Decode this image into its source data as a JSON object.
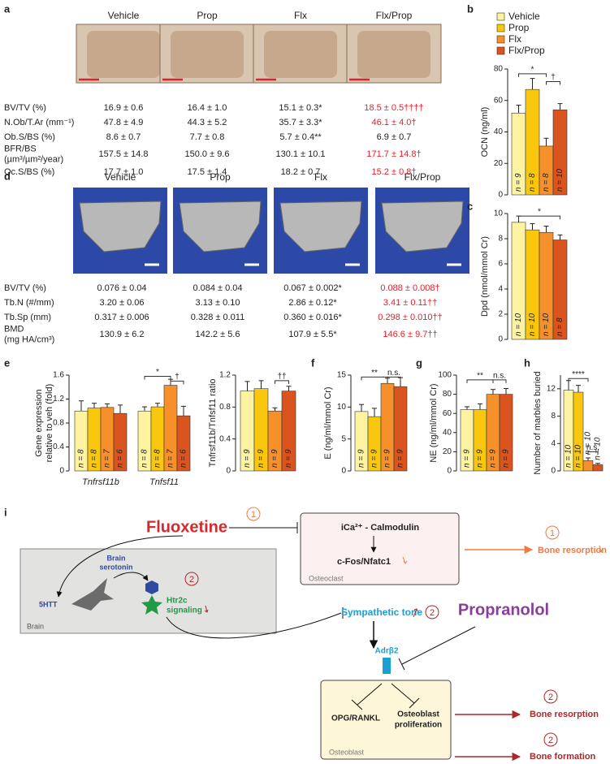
{
  "panel_labels": [
    "a",
    "b",
    "c",
    "d",
    "e",
    "f",
    "g",
    "h",
    "i"
  ],
  "histomorphometry": {
    "groups": [
      "Vehicle",
      "Prop",
      "Flx",
      "Flx/Prop"
    ],
    "highlight_color": "#e8202a",
    "rows": [
      {
        "label": [
          "BV/TV (%)"
        ],
        "cells": [
          "16.9 ± 0.6",
          "16.4 ± 1.0",
          "15.1 ± 0.3*",
          "18.5 ± 0.5††††"
        ],
        "highlight": true
      },
      {
        "label": [
          "N.Ob/T.Ar (mm⁻¹)"
        ],
        "cells": [
          "47.8 ± 4.9",
          "44.3 ± 5.2",
          "35.7 ± 3.3*",
          "46.1 ± 4.0†"
        ],
        "highlight": true
      },
      {
        "label": [
          "Ob.S/BS (%)"
        ],
        "cells": [
          "8.6 ± 0.7",
          "7.7 ± 0.8",
          "5.7 ± 0.4**",
          "6.9 ± 0.7"
        ],
        "highlight": false
      },
      {
        "label": [
          "BFR/BS",
          "(µm³/µm²/year)"
        ],
        "cells": [
          "157.5 ± 14.8",
          "150.0 ± 9.6",
          "130.1 ± 10.1",
          "171.7 ± 14.8†"
        ],
        "highlight": true
      },
      {
        "label": [
          "Oc.S/BS (%)"
        ],
        "cells": [
          "17.7 ± 1.0",
          "17.5 ± 1.4",
          "18.2 ± 0.7",
          "15.2 ± 0.8†"
        ],
        "highlight": true
      }
    ]
  },
  "micro_ct": {
    "groups": [
      "Vehicle",
      "Prop",
      "Flx",
      "Flx/Prop"
    ],
    "highlight_color": "#e8202a",
    "rows": [
      {
        "label": [
          "BV/TV (%)"
        ],
        "cells": [
          "0.076 ± 0.04",
          "0.084 ± 0.04",
          "0.067 ± 0.002*",
          "0.088 ± 0.008†"
        ],
        "highlight": true
      },
      {
        "label": [
          "Tb.N (#/mm)"
        ],
        "cells": [
          "3.20 ± 0.06",
          "3.13 ± 0.10",
          "2.86 ± 0.12*",
          "3.41 ± 0.11††"
        ],
        "highlight": true
      },
      {
        "label": [
          "Tb.Sp (mm)"
        ],
        "cells": [
          "0.317 ± 0.006",
          "0.328 ± 0.011",
          "0.360 ± 0.016*",
          "0.298 ± 0.010††"
        ],
        "highlight": true
      },
      {
        "label": [
          "BMD",
          "(mg HA/cm³)"
        ],
        "cells": [
          "130.9 ± 6.2",
          "142.2 ± 5.6",
          "107.9 ± 5.5*",
          "146.6 ± 9.7††"
        ],
        "highlight": true
      }
    ]
  },
  "chart_data": [
    {
      "type": "bar",
      "ylabel": [
        "OCN (ng/ml)"
      ],
      "ylim": [
        0,
        80
      ],
      "yticks": [
        0,
        20,
        40,
        60,
        80
      ],
      "legend": true,
      "series": [
        {
          "name": "Vehicle",
          "color": "#fdf3a0",
          "values": [
            52
          ],
          "errors": [
            5
          ],
          "n_labels": [
            "n = 9"
          ]
        },
        {
          "name": "Prop",
          "color": "#f9c80e",
          "values": [
            67
          ],
          "errors": [
            7
          ],
          "n_labels": [
            "n = 8"
          ]
        },
        {
          "name": "Flx",
          "color": "#f5902a",
          "values": [
            31
          ],
          "errors": [
            5
          ],
          "n_labels": [
            "n = 8"
          ]
        },
        {
          "name": "Flx/Prop",
          "color": "#d9541e",
          "values": [
            54
          ],
          "errors": [
            4
          ],
          "n_labels": [
            "n = 10"
          ]
        }
      ],
      "annotations": [
        "*",
        "†"
      ]
    },
    {
      "type": "bar",
      "ylabel": [
        "Dpd (nmol/mmol Cr)"
      ],
      "ylim": [
        0,
        10
      ],
      "yticks": [
        0,
        2,
        4,
        6,
        8,
        10
      ],
      "series": [
        {
          "color": "#fdf3a0",
          "values": [
            9.3
          ],
          "errors": [
            0.5
          ],
          "n_labels": [
            "n = 10"
          ]
        },
        {
          "color": "#f9c80e",
          "values": [
            8.7
          ],
          "errors": [
            0.5
          ],
          "n_labels": [
            "n = 10"
          ]
        },
        {
          "color": "#f5902a",
          "values": [
            8.5
          ],
          "errors": [
            0.5
          ],
          "n_labels": [
            "n = 10"
          ]
        },
        {
          "color": "#d9541e",
          "values": [
            7.9
          ],
          "errors": [
            0.4
          ],
          "n_labels": [
            "n = 8"
          ]
        }
      ],
      "annotations": [
        "*"
      ]
    },
    {
      "type": "bar",
      "ylabel": [
        "Gene expression",
        "relative to veh (fold)"
      ],
      "categories": [
        "Tnfrsf11b",
        "Tnfsf11"
      ],
      "ylim": [
        0,
        1.6
      ],
      "yticks": [
        0,
        0.4,
        0.8,
        1.2,
        1.6
      ],
      "series": [
        {
          "color": "#fdf3a0",
          "values": [
            1.0,
            1.0
          ],
          "errors": [
            0.17,
            0.07
          ],
          "n_labels": [
            "n = 8",
            "n = 8"
          ]
        },
        {
          "color": "#f9c80e",
          "values": [
            1.05,
            1.07
          ],
          "errors": [
            0.08,
            0.06
          ],
          "n_labels": [
            "n = 8",
            "n = 8"
          ]
        },
        {
          "color": "#f5902a",
          "values": [
            1.06,
            1.43
          ],
          "errors": [
            0.06,
            0.1
          ],
          "n_labels": [
            "n = 7",
            "n = 7"
          ]
        },
        {
          "color": "#d9541e",
          "values": [
            0.96,
            0.92
          ],
          "errors": [
            0.14,
            0.16
          ],
          "n_labels": [
            "n = 6",
            "n = 6"
          ]
        }
      ],
      "annotations": [
        "*",
        "†"
      ]
    },
    {
      "type": "bar",
      "ylabel": [
        "Tnfrsf11b/Tnfsf11 ratio"
      ],
      "ylim": [
        0,
        1.2
      ],
      "yticks": [
        0,
        0.4,
        0.8,
        1.2
      ],
      "series": [
        {
          "color": "#fdf3a0",
          "values": [
            1.0
          ],
          "errors": [
            0.12
          ],
          "n_labels": [
            "n = 9"
          ]
        },
        {
          "color": "#f9c80e",
          "values": [
            1.03
          ],
          "errors": [
            0.1
          ],
          "n_labels": [
            "n = 9"
          ]
        },
        {
          "color": "#f5902a",
          "values": [
            0.75
          ],
          "errors": [
            0.04
          ],
          "n_labels": [
            "n = 9"
          ]
        },
        {
          "color": "#d9541e",
          "values": [
            1.0
          ],
          "errors": [
            0.06
          ],
          "n_labels": [
            "n = 9"
          ]
        }
      ],
      "annotations": [
        "††"
      ]
    },
    {
      "type": "bar",
      "ylabel": [
        "E (ng/ml/mmol Cr)"
      ],
      "ylim": [
        0,
        15
      ],
      "yticks": [
        0,
        5,
        10,
        15
      ],
      "series": [
        {
          "color": "#fdf3a0",
          "values": [
            9.3
          ],
          "errors": [
            1.1
          ],
          "n_labels": [
            "n = 9"
          ]
        },
        {
          "color": "#f9c80e",
          "values": [
            8.5
          ],
          "errors": [
            1.3
          ],
          "n_labels": [
            "n = 9"
          ]
        },
        {
          "color": "#f5902a",
          "values": [
            13.7
          ],
          "errors": [
            0.8
          ],
          "n_labels": [
            "n = 9"
          ]
        },
        {
          "color": "#d9541e",
          "values": [
            13.2
          ],
          "errors": [
            1.4
          ],
          "n_labels": [
            "n = 9"
          ]
        }
      ],
      "annotations": [
        "**",
        "n.s."
      ]
    },
    {
      "type": "bar",
      "ylabel": [
        "NE (ng/ml/mmol Cr)"
      ],
      "ylim": [
        0,
        100
      ],
      "yticks": [
        0,
        20,
        40,
        60,
        80,
        100
      ],
      "series": [
        {
          "color": "#fdf3a0",
          "values": [
            64
          ],
          "errors": [
            3
          ],
          "n_labels": [
            "n = 9"
          ]
        },
        {
          "color": "#f9c80e",
          "values": [
            64
          ],
          "errors": [
            6
          ],
          "n_labels": [
            "n = 9"
          ]
        },
        {
          "color": "#f5902a",
          "values": [
            80
          ],
          "errors": [
            5
          ],
          "n_labels": [
            "n = 9"
          ]
        },
        {
          "color": "#d9541e",
          "values": [
            80
          ],
          "errors": [
            6
          ],
          "n_labels": [
            "n = 9"
          ]
        }
      ],
      "annotations": [
        "**",
        "n.s."
      ]
    },
    {
      "type": "bar",
      "ylabel": [
        "Number of marbles buried"
      ],
      "ylim": [
        0,
        14
      ],
      "yticks": [
        0,
        4,
        8,
        12
      ],
      "series": [
        {
          "color": "#fdf3a0",
          "values": [
            11.8
          ],
          "errors": [
            1.4
          ],
          "n_labels": [
            "n = 10"
          ]
        },
        {
          "color": "#f9c80e",
          "values": [
            11.5
          ],
          "errors": [
            1.0
          ],
          "n_labels": [
            "n = 10"
          ]
        },
        {
          "color": "#f5902a",
          "values": [
            1.5
          ],
          "errors": [
            0.4
          ],
          "n_labels": [
            "n = 10"
          ]
        },
        {
          "color": "#d9541e",
          "values": [
            0.9
          ],
          "errors": [
            0.2
          ],
          "n_labels": [
            "n = 10"
          ]
        }
      ],
      "annotations": [
        "****",
        "n.s."
      ]
    }
  ],
  "diagram": {
    "drug1": {
      "name": "Fluoxetine",
      "step": "1"
    },
    "drug2": {
      "name": "Propranolol"
    },
    "osteoclast": {
      "box": "Osteoclast",
      "signal": "iCa²⁺ - Calmodulin",
      "target": "c-Fos/Nfatc1"
    },
    "brain": {
      "box": "Brain",
      "serotonin": [
        "Brain",
        "serotonin"
      ],
      "transporter": "5HTT",
      "receptor": [
        "Htr2c",
        "signaling"
      ],
      "step": "2"
    },
    "sympathetic": {
      "text": "Sympathetic tone",
      "step": "2"
    },
    "receptor": "Adrβ2",
    "osteoblast": {
      "box": "Osteoblast",
      "opg": "OPG/RANKL",
      "proliferation": [
        "Osteoblast",
        "proliferation"
      ]
    },
    "outcomes": [
      {
        "step": "1",
        "text": "Bone resorption"
      },
      {
        "step": "2",
        "text": "Bone resorption"
      },
      {
        "step": "2",
        "text": "Bone formation"
      }
    ]
  }
}
